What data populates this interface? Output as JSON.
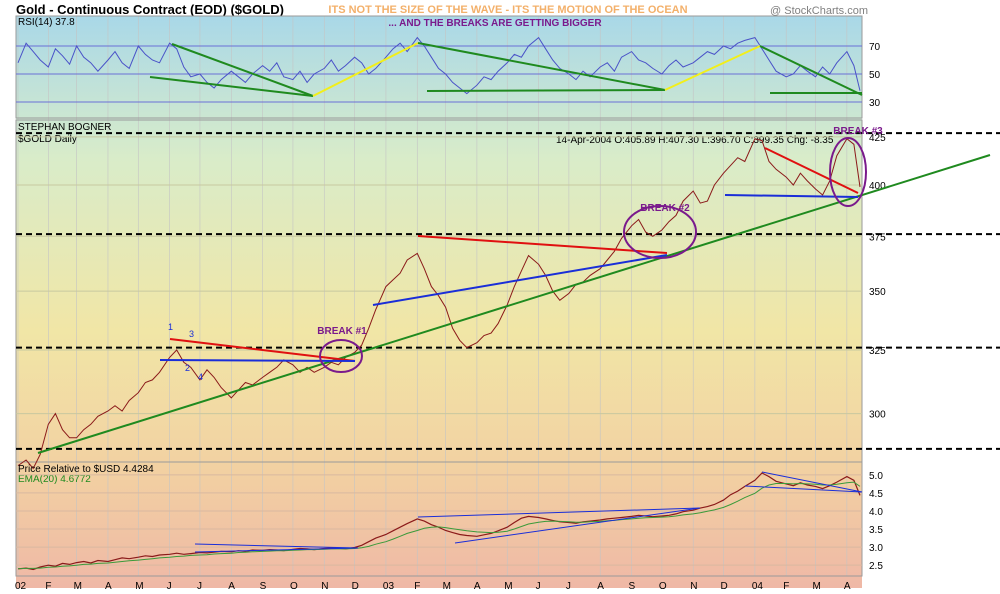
{
  "header": {
    "title": "Gold - Continuous Contract (EOD) ($GOLD)",
    "tagline": "ITS NOT THE SIZE OF THE WAVE - ITS THE MOTION OF THE OCEAN",
    "copyright": "@ StockCharts.com"
  },
  "colors": {
    "price_line": "#8b1a1a",
    "rsi_line": "#4a52c8",
    "trend_green": "#1f8a1f",
    "trend_red": "#e01010",
    "trend_blue": "#1a2ed8",
    "trend_yellow": "#f2ef1a",
    "break_circle": "#7a1a8c",
    "ema_line": "#3a9a3a",
    "tagline": "#f3b06a"
  },
  "chart_data": [
    {
      "type": "line",
      "title": "RSI(14) 37.8",
      "annotation": "... AND THE BREAKS ARE GETTING BIGGER",
      "ylim": [
        20,
        90
      ],
      "yticks": [
        "70",
        "50",
        "30"
      ],
      "x": [
        "2002-01-02",
        "2002-01-10",
        "2002-01-17",
        "2002-01-24",
        "2002-02-01",
        "2002-02-08",
        "2002-02-15",
        "2002-02-22",
        "2002-03-01",
        "2002-03-08",
        "2002-03-15",
        "2002-03-22",
        "2002-04-01",
        "2002-04-08",
        "2002-04-15",
        "2002-04-22",
        "2002-05-01",
        "2002-05-08",
        "2002-05-15",
        "2002-05-22",
        "2002-06-01",
        "2002-06-08",
        "2002-06-15",
        "2002-06-22",
        "2002-07-01",
        "2002-07-08",
        "2002-07-15",
        "2002-07-22",
        "2002-08-01",
        "2002-08-08",
        "2002-08-15",
        "2002-08-22",
        "2002-09-01",
        "2002-09-08",
        "2002-09-15",
        "2002-09-22",
        "2002-10-01",
        "2002-10-08",
        "2002-10-15",
        "2002-10-22",
        "2002-11-01",
        "2002-11-08",
        "2002-11-15",
        "2002-11-22",
        "2002-12-01",
        "2002-12-08",
        "2002-12-15",
        "2002-12-22",
        "2003-01-01",
        "2003-01-08",
        "2003-01-15",
        "2003-01-22",
        "2003-02-01",
        "2003-02-08",
        "2003-02-15",
        "2003-02-22",
        "2003-03-01",
        "2003-03-08",
        "2003-03-15",
        "2003-03-22",
        "2003-04-01",
        "2003-04-08",
        "2003-04-15",
        "2003-04-22",
        "2003-05-01",
        "2003-05-08",
        "2003-05-15",
        "2003-05-22",
        "2003-06-01",
        "2003-06-08",
        "2003-06-15",
        "2003-06-22",
        "2003-07-01",
        "2003-07-08",
        "2003-07-15",
        "2003-07-22",
        "2003-08-01",
        "2003-08-08",
        "2003-08-15",
        "2003-08-22",
        "2003-09-01",
        "2003-09-08",
        "2003-09-15",
        "2003-09-22",
        "2003-10-01",
        "2003-10-08",
        "2003-10-15",
        "2003-10-22",
        "2003-11-01",
        "2003-11-08",
        "2003-11-15",
        "2003-11-22",
        "2003-12-01",
        "2003-12-08",
        "2003-12-15",
        "2003-12-22",
        "2004-01-01",
        "2004-01-08",
        "2004-01-15",
        "2004-01-22",
        "2004-02-01",
        "2004-02-08",
        "2004-02-15",
        "2004-02-22",
        "2004-03-01",
        "2004-03-08",
        "2004-03-15",
        "2004-03-22",
        "2004-04-01",
        "2004-04-08",
        "2004-04-14"
      ],
      "values": [
        58,
        72,
        66,
        60,
        55,
        68,
        63,
        57,
        70,
        62,
        58,
        52,
        60,
        66,
        58,
        54,
        70,
        64,
        60,
        58,
        72,
        68,
        55,
        48,
        50,
        44,
        40,
        46,
        52,
        48,
        44,
        50,
        56,
        52,
        58,
        48,
        46,
        52,
        44,
        50,
        54,
        60,
        52,
        56,
        62,
        58,
        50,
        54,
        62,
        68,
        72,
        66,
        76,
        70,
        62,
        54,
        50,
        44,
        40,
        36,
        42,
        48,
        46,
        52,
        58,
        64,
        62,
        70,
        76,
        68,
        60,
        54,
        50,
        46,
        52,
        48,
        55,
        58,
        52,
        62,
        66,
        60,
        58,
        54,
        50,
        56,
        60,
        55,
        58,
        62,
        66,
        64,
        70,
        68,
        72,
        74,
        76,
        68,
        60,
        52,
        48,
        50,
        56,
        52,
        48,
        55,
        50,
        58,
        66,
        56,
        38
      ],
      "grid": true
    },
    {
      "type": "line",
      "title": "$GOLD Daily",
      "author": "STEPHAN BOGNER",
      "quote": "14-Apr-2004 O:405.89 H:407.30 L:396.70 C:399.35 Chg: -8.35",
      "yscale": "log",
      "ylim": [
        283,
        433
      ],
      "yticks": [
        "425",
        "400",
        "375",
        "350",
        "325",
        "300"
      ],
      "xtick_labels": [
        "02",
        "F",
        "M",
        "A",
        "M",
        "J",
        "J",
        "A",
        "S",
        "O",
        "N",
        "D",
        "03",
        "F",
        "M",
        "A",
        "M",
        "J",
        "J",
        "A",
        "S",
        "O",
        "N",
        "D",
        "04",
        "F",
        "M",
        "A"
      ],
      "annotations": [
        "BREAK #1",
        "BREAK #2",
        "BREAK #3",
        "1",
        "2",
        "3",
        "4"
      ],
      "x": [
        "2002-01-02",
        "2002-01-10",
        "2002-01-17",
        "2002-01-24",
        "2002-02-01",
        "2002-02-08",
        "2002-02-15",
        "2002-02-22",
        "2002-03-01",
        "2002-03-08",
        "2002-03-15",
        "2002-03-22",
        "2002-04-01",
        "2002-04-08",
        "2002-04-15",
        "2002-04-22",
        "2002-05-01",
        "2002-05-08",
        "2002-05-15",
        "2002-05-22",
        "2002-06-01",
        "2002-06-08",
        "2002-06-15",
        "2002-06-22",
        "2002-07-01",
        "2002-07-08",
        "2002-07-15",
        "2002-07-22",
        "2002-08-01",
        "2002-08-08",
        "2002-08-15",
        "2002-08-22",
        "2002-09-01",
        "2002-09-08",
        "2002-09-15",
        "2002-09-22",
        "2002-10-01",
        "2002-10-08",
        "2002-10-15",
        "2002-10-22",
        "2002-11-01",
        "2002-11-08",
        "2002-11-15",
        "2002-11-22",
        "2002-12-01",
        "2002-12-08",
        "2002-12-15",
        "2002-12-22",
        "2003-01-01",
        "2003-01-08",
        "2003-01-15",
        "2003-01-22",
        "2003-02-01",
        "2003-02-08",
        "2003-02-15",
        "2003-02-22",
        "2003-03-01",
        "2003-03-08",
        "2003-03-15",
        "2003-03-22",
        "2003-04-01",
        "2003-04-08",
        "2003-04-15",
        "2003-04-22",
        "2003-05-01",
        "2003-05-08",
        "2003-05-15",
        "2003-05-22",
        "2003-06-01",
        "2003-06-08",
        "2003-06-15",
        "2003-06-22",
        "2003-07-01",
        "2003-07-08",
        "2003-07-15",
        "2003-07-22",
        "2003-08-01",
        "2003-08-08",
        "2003-08-15",
        "2003-08-22",
        "2003-09-01",
        "2003-09-08",
        "2003-09-15",
        "2003-09-22",
        "2003-10-01",
        "2003-10-08",
        "2003-10-15",
        "2003-10-22",
        "2003-11-01",
        "2003-11-08",
        "2003-11-15",
        "2003-11-22",
        "2003-12-01",
        "2003-12-08",
        "2003-12-15",
        "2003-12-22",
        "2004-01-01",
        "2004-01-08",
        "2004-01-15",
        "2004-01-22",
        "2004-02-01",
        "2004-02-08",
        "2004-02-15",
        "2004-02-22",
        "2004-03-01",
        "2004-03-08",
        "2004-03-15",
        "2004-03-22",
        "2004-04-01",
        "2004-04-08",
        "2004-04-14"
      ],
      "values": [
        281,
        283,
        280,
        285,
        296,
        300,
        294,
        291,
        291,
        294,
        296,
        299,
        301,
        303,
        301,
        305,
        308,
        312,
        313,
        316,
        322,
        325,
        320,
        318,
        313,
        317,
        314,
        310,
        306,
        309,
        312,
        311,
        314,
        316,
        318,
        321,
        319,
        316,
        318,
        316,
        318,
        320,
        319,
        322,
        324,
        327,
        334,
        342,
        352,
        355,
        358,
        364,
        367,
        360,
        352,
        348,
        343,
        334,
        329,
        326,
        328,
        331,
        332,
        336,
        344,
        352,
        359,
        366,
        362,
        357,
        350,
        346,
        349,
        353,
        354,
        357,
        360,
        364,
        368,
        374,
        380,
        383,
        377,
        375,
        378,
        382,
        385,
        392,
        397,
        391,
        392,
        400,
        406,
        410,
        414,
        412,
        424,
        423,
        412,
        408,
        404,
        400,
        406,
        402,
        398,
        395,
        402,
        415,
        424,
        421,
        399
      ],
      "lines": {
        "support_levels": [
          427,
          376,
          326,
          287
        ]
      }
    },
    {
      "type": "line",
      "title": "Price Relative to $USD 4.4284",
      "ylim": [
        2.2,
        5.3
      ],
      "yticks": [
        "5.0",
        "4.5",
        "4.0",
        "3.5",
        "3.0",
        "2.5"
      ],
      "series": [
        {
          "name": "Price Relative to $USD 4.4284",
          "values": [
            2.4,
            2.42,
            2.38,
            2.45,
            2.5,
            2.47,
            2.55,
            2.52,
            2.57,
            2.6,
            2.56,
            2.63,
            2.6,
            2.65,
            2.7,
            2.68,
            2.72,
            2.76,
            2.74,
            2.78,
            2.8,
            2.83,
            2.8,
            2.82,
            2.85,
            2.84,
            2.86,
            2.88,
            2.87,
            2.9,
            2.88,
            2.92,
            2.91,
            2.93,
            2.92,
            2.9,
            2.94,
            2.96,
            2.95,
            2.93,
            2.96,
            2.98,
            2.97,
            2.95,
            2.99,
            3.05,
            3.15,
            3.25,
            3.35,
            3.45,
            3.55,
            3.65,
            3.78,
            3.72,
            3.62,
            3.55,
            3.46,
            3.4,
            3.35,
            3.32,
            3.3,
            3.34,
            3.38,
            3.45,
            3.55,
            3.68,
            3.8,
            3.85,
            3.82,
            3.78,
            3.74,
            3.7,
            3.68,
            3.66,
            3.7,
            3.72,
            3.75,
            3.78,
            3.8,
            3.82,
            3.85,
            3.88,
            3.86,
            3.84,
            3.86,
            3.88,
            3.92,
            3.98,
            4.02,
            4.08,
            4.12,
            4.18,
            4.3,
            4.45,
            4.55,
            4.68,
            4.85,
            5.05,
            4.95,
            4.82,
            4.75,
            4.7,
            4.78,
            4.72,
            4.68,
            4.62,
            4.7,
            4.8,
            4.95,
            4.85,
            4.43
          ]
        },
        {
          "name": "EMA(20) 4.6772",
          "values": [
            2.4,
            2.41,
            2.41,
            2.42,
            2.44,
            2.45,
            2.47,
            2.48,
            2.5,
            2.52,
            2.53,
            2.55,
            2.56,
            2.58,
            2.6,
            2.62,
            2.64,
            2.66,
            2.68,
            2.7,
            2.72,
            2.74,
            2.75,
            2.77,
            2.78,
            2.79,
            2.81,
            2.82,
            2.83,
            2.85,
            2.86,
            2.87,
            2.88,
            2.89,
            2.9,
            2.9,
            2.91,
            2.92,
            2.93,
            2.93,
            2.94,
            2.95,
            2.95,
            2.95,
            2.96,
            2.98,
            3.02,
            3.08,
            3.15,
            3.22,
            3.3,
            3.38,
            3.46,
            3.52,
            3.55,
            3.56,
            3.54,
            3.51,
            3.48,
            3.45,
            3.42,
            3.41,
            3.4,
            3.41,
            3.44,
            3.5,
            3.57,
            3.64,
            3.69,
            3.71,
            3.72,
            3.71,
            3.7,
            3.69,
            3.69,
            3.7,
            3.71,
            3.73,
            3.74,
            3.76,
            3.78,
            3.8,
            3.81,
            3.82,
            3.83,
            3.84,
            3.86,
            3.89,
            3.92,
            3.95,
            3.99,
            4.03,
            4.1,
            4.18,
            4.27,
            4.37,
            4.49,
            4.63,
            4.72,
            4.76,
            4.76,
            4.75,
            4.76,
            4.75,
            4.74,
            4.72,
            4.72,
            4.74,
            4.78,
            4.8,
            4.68
          ]
        }
      ]
    }
  ]
}
